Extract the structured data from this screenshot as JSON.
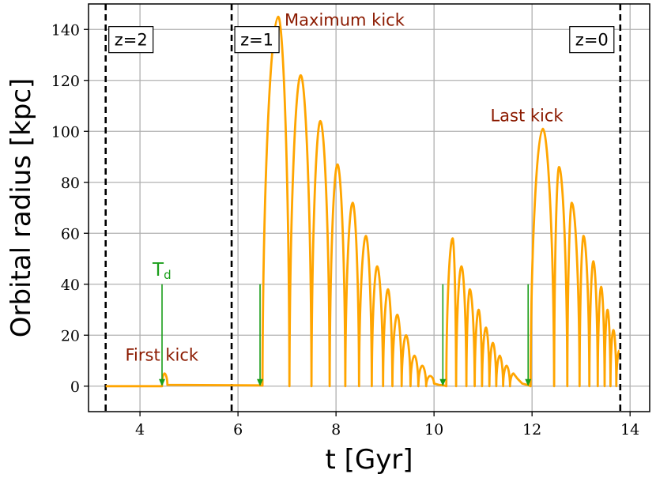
{
  "chart_data": {
    "type": "line",
    "xlabel": "t [Gyr]",
    "ylabel": "Orbital radius [kpc]",
    "xlim": [
      2.95,
      14.4
    ],
    "ylim": [
      -10,
      150
    ],
    "xticks": [
      4,
      6,
      8,
      10,
      12,
      14
    ],
    "yticks": [
      0,
      20,
      40,
      60,
      80,
      100,
      120,
      140
    ],
    "grid": true,
    "line_color": "#ffa500",
    "series": [
      {
        "color": "#ffa500",
        "x": [
          3.3,
          4.45,
          4.5,
          4.56,
          6.45,
          6.5,
          6.82,
          7.05,
          7.28,
          7.5,
          7.68,
          7.87,
          8.03,
          8.19,
          8.34,
          8.47,
          8.61,
          8.73,
          8.84,
          8.96,
          9.06,
          9.15,
          9.25,
          9.34,
          9.43,
          9.52,
          9.6,
          9.68,
          9.76,
          9.84,
          9.92,
          10.0,
          10.1,
          10.2,
          10.25,
          10.38,
          10.45,
          10.56,
          10.66,
          10.73,
          10.83,
          10.91,
          10.98,
          11.06,
          11.13,
          11.2,
          11.27,
          11.34,
          11.41,
          11.48,
          11.55,
          11.62,
          11.7,
          11.8,
          11.9,
          11.97,
          12.22,
          12.45,
          12.55,
          12.72,
          12.81,
          12.97,
          13.05,
          13.17,
          13.25,
          13.34,
          13.41,
          13.48,
          13.54,
          13.6,
          13.66,
          13.72,
          13.78
        ],
        "y": [
          0,
          0,
          5,
          0.5,
          0.3,
          0.2,
          145,
          0,
          122,
          0,
          104,
          0,
          87,
          0,
          72,
          0,
          59,
          0,
          47,
          0,
          38,
          0,
          28,
          0,
          20,
          0,
          12,
          0,
          8,
          0,
          4,
          1,
          0.5,
          0.3,
          0,
          58,
          0,
          47,
          0,
          38,
          0,
          30,
          0,
          23,
          0,
          17,
          0,
          12,
          0,
          8,
          0,
          5,
          3,
          1,
          0.5,
          0,
          101,
          0,
          86,
          0,
          72,
          0,
          59,
          0,
          49,
          0,
          39,
          0,
          30,
          0,
          22,
          0,
          14
        ]
      }
    ],
    "vlines": [
      {
        "x": 3.3,
        "label": "z=2"
      },
      {
        "x": 5.87,
        "label": "z=1"
      },
      {
        "x": 13.8,
        "label": "z=0"
      }
    ],
    "green_arrows": [
      {
        "x": 4.45,
        "y_top": 40,
        "label": "T_d"
      },
      {
        "x": 6.45,
        "y_top": 40
      },
      {
        "x": 10.18,
        "y_top": 40
      },
      {
        "x": 11.92,
        "y_top": 40
      }
    ],
    "annotations": [
      {
        "text": "First kick",
        "x": 3.7,
        "y": 10
      },
      {
        "text": "Maximum kick",
        "x": 6.95,
        "y": 141.5
      },
      {
        "text": "Last kick",
        "x": 11.15,
        "y": 104
      }
    ],
    "annotation_color": "#8b1a00",
    "arrow_color": "#1a9e1a",
    "td_text": {
      "main": "T",
      "sub": "d"
    }
  }
}
